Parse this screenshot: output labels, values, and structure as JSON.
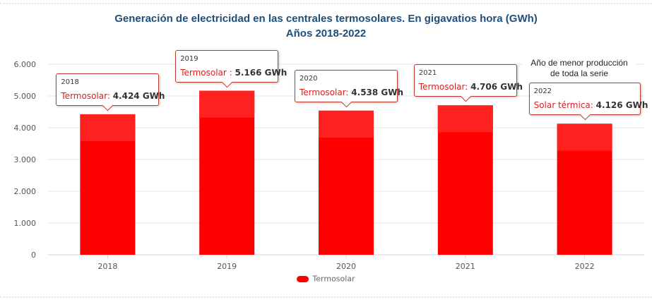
{
  "chart_data": {
    "type": "bar",
    "title": "Generación de electricidad en las centrales termosolares. En gigavatios hora (GWh)",
    "subtitle": "Años 2018-2022",
    "xlabel": "",
    "ylabel": "",
    "categories": [
      "2018",
      "2019",
      "2020",
      "2021",
      "2022"
    ],
    "series": [
      {
        "name": "Termosolar",
        "values": [
          4424,
          5166,
          4538,
          4706,
          4126
        ],
        "color": "#ff0000"
      }
    ],
    "ylim": [
      0,
      6000
    ],
    "yticks": [
      0,
      1000,
      2000,
      3000,
      4000,
      5000,
      6000
    ],
    "ytick_labels": [
      "0",
      "1.000",
      "2.000",
      "3.000",
      "4.000",
      "5.000",
      "6.000"
    ],
    "grid": true,
    "legend": "bottom-center",
    "tooltips": [
      {
        "year": "2018",
        "series_label": "Termosolar:",
        "value_label": "4.424 GWh"
      },
      {
        "year": "2019",
        "series_label": "Termosolar :",
        "value_label": "5.166 GWh"
      },
      {
        "year": "2020",
        "series_label": "Termosolar:",
        "value_label": "4.538 GWh"
      },
      {
        "year": "2021",
        "series_label": "Termosolar:",
        "value_label": "4.706 GWh"
      },
      {
        "year": "2022",
        "series_label": "Solar térmica:",
        "value_label": "4.126 GWh"
      }
    ],
    "annotation": {
      "line1": "Año de menor producción",
      "line2": "de toda la serie",
      "category": "2022"
    }
  },
  "colors": {
    "bar": "#ff0000",
    "bar_highlight": "#ff2020",
    "title": "#1f4e79",
    "tooltip_border": "#c0392b",
    "series_label": "#d9201f"
  },
  "legend": {
    "label": "Termosolar"
  }
}
